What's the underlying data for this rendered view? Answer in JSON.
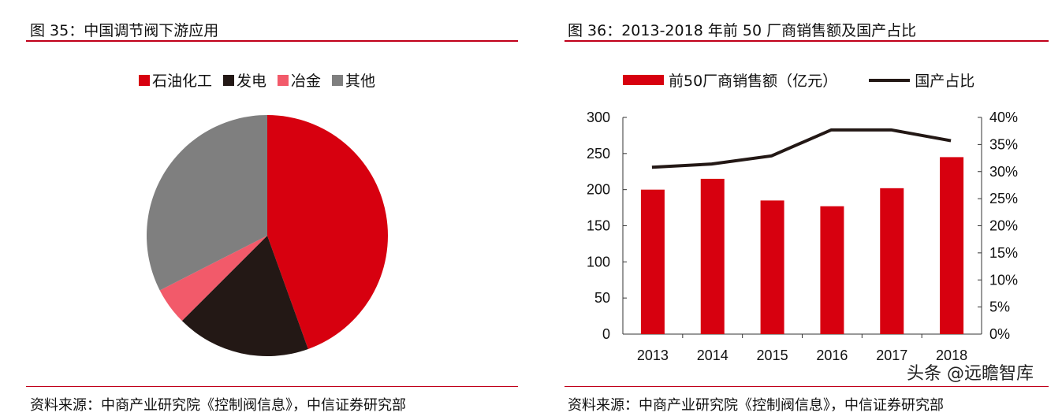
{
  "left": {
    "title": "图 35：中国调节阀下游应用",
    "source": "资料来源：中商产业研究院《控制阀信息》，中信证券研究部"
  },
  "right": {
    "title": "图 36：2013-2018 年前 50 厂商销售额及国产占比",
    "source": "资料来源：中商产业研究院《控制阀信息》，中信证券研究部"
  },
  "watermark": "头条 @远瞻智库",
  "chart_data": [
    {
      "type": "pie",
      "categories": [
        "石油化工",
        "发电",
        "冶金",
        "其他"
      ],
      "values": [
        44.5,
        18,
        5,
        32.5
      ],
      "colors": [
        "#d7000f",
        "#231815",
        "#f25a6a",
        "#7f7f7f"
      ],
      "legend": "top"
    },
    {
      "type": "bar+line",
      "categories": [
        "2013",
        "2014",
        "2015",
        "2016",
        "2017",
        "2018"
      ],
      "series": [
        {
          "name": "前50厂商销售额（亿元）",
          "type": "bar",
          "axis": "left",
          "color": "#d7000f",
          "values": [
            200,
            215,
            185,
            177,
            202,
            245
          ]
        },
        {
          "name": "国产占比",
          "type": "line",
          "axis": "right",
          "color": "#231815",
          "values": [
            30.8,
            31.4,
            32.9,
            37.7,
            37.7,
            35.7
          ]
        }
      ],
      "ylim": [
        0,
        300
      ],
      "yticks": [
        "0",
        "50",
        "100",
        "150",
        "200",
        "250",
        "300"
      ],
      "y2lim": [
        0,
        40
      ],
      "y2ticks": [
        "0%",
        "5%",
        "10%",
        "15%",
        "20%",
        "25%",
        "30%",
        "35%",
        "40%"
      ],
      "legend": "top",
      "grid": false
    }
  ]
}
